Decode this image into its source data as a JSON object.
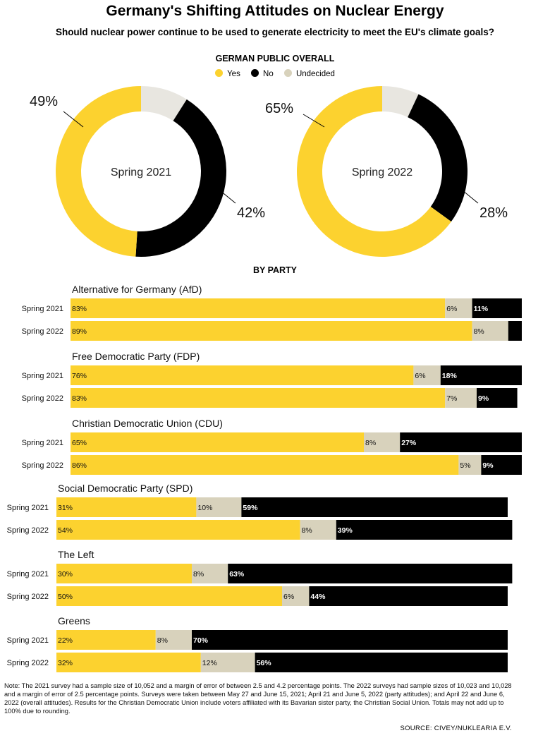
{
  "title": "Germany's Shifting Attitudes on Nuclear Energy",
  "subtitle": "Should nuclear power continue to be used to generate electricity to meet the EU's climate goals?",
  "overall_label": "GERMAN PUBLIC OVERALL",
  "party_label": "BY PARTY",
  "legend": [
    {
      "label": "Yes",
      "color": "#fcd22f"
    },
    {
      "label": "No",
      "color": "#000000"
    },
    {
      "label": "Undecided",
      "color": "#d8d2bc"
    }
  ],
  "colors": {
    "yes": "#fcd22f",
    "no": "#000000",
    "undecided_bar": "#d8d2bc",
    "undecided_donut": "#e8e6e0"
  },
  "chart_data": [
    {
      "type": "pie",
      "title": "GERMAN PUBLIC OVERALL",
      "donuts": [
        {
          "label": "Spring 2021",
          "yes": 49,
          "no": 42,
          "undecided": 9,
          "yes_label": "49%",
          "no_label": "42%"
        },
        {
          "label": "Spring 2022",
          "yes": 65,
          "no": 28,
          "undecided": 7,
          "yes_label": "65%",
          "no_label": "28%"
        }
      ]
    },
    {
      "type": "bar",
      "title": "BY PARTY",
      "series_names": [
        "Yes",
        "Undecided",
        "No"
      ],
      "parties": [
        {
          "name": "Alternative for Germany (AfD)",
          "rows": [
            {
              "label": "Spring 2021",
              "yes": 83,
              "undecided": 6,
              "no": 11,
              "yes_text": "83%",
              "undecided_text": "6%",
              "no_text": "11%"
            },
            {
              "label": "Spring 2022",
              "yes": 89,
              "undecided": 8,
              "no": 3,
              "yes_text": "89%",
              "undecided_text": "8%",
              "no_text": ""
            }
          ]
        },
        {
          "name": "Free Democratic Party (FDP)",
          "rows": [
            {
              "label": "Spring 2021",
              "yes": 76,
              "undecided": 6,
              "no": 18,
              "yes_text": "76%",
              "undecided_text": "6%",
              "no_text": "18%"
            },
            {
              "label": "Spring 2022",
              "yes": 83,
              "undecided": 7,
              "no": 9,
              "yes_text": "83%",
              "undecided_text": "7%",
              "no_text": "9%"
            }
          ]
        },
        {
          "name": "Christian Democratic Union (CDU)",
          "rows": [
            {
              "label": "Spring 2021",
              "yes": 65,
              "undecided": 8,
              "no": 27,
              "yes_text": "65%",
              "undecided_text": "8%",
              "no_text": "27%"
            },
            {
              "label": "Spring 2022",
              "yes": 86,
              "undecided": 5,
              "no": 9,
              "yes_text": "86%",
              "undecided_text": "5%",
              "no_text": "9%"
            }
          ]
        },
        {
          "name": "Social Democratic Party (SPD)",
          "rows": [
            {
              "label": "Spring 2021",
              "yes": 31,
              "undecided": 10,
              "no": 59,
              "yes_text": "31%",
              "undecided_text": "10%",
              "no_text": "59%"
            },
            {
              "label": "Spring 2022",
              "yes": 54,
              "undecided": 8,
              "no": 39,
              "yes_text": "54%",
              "undecided_text": "8%",
              "no_text": "39%"
            }
          ]
        },
        {
          "name": "The Left",
          "rows": [
            {
              "label": "Spring 2021",
              "yes": 30,
              "undecided": 8,
              "no": 63,
              "yes_text": "30%",
              "undecided_text": "8%",
              "no_text": "63%"
            },
            {
              "label": "Spring 2022",
              "yes": 50,
              "undecided": 6,
              "no": 44,
              "yes_text": "50%",
              "undecided_text": "6%",
              "no_text": "44%"
            }
          ]
        },
        {
          "name": "Greens",
          "rows": [
            {
              "label": "Spring 2021",
              "yes": 22,
              "undecided": 8,
              "no": 70,
              "yes_text": "22%",
              "undecided_text": "8%",
              "no_text": "70%"
            },
            {
              "label": "Spring 2022",
              "yes": 32,
              "undecided": 12,
              "no": 56,
              "yes_text": "32%",
              "undecided_text": "12%",
              "no_text": "56%"
            }
          ]
        }
      ]
    }
  ],
  "note": "Note: The 2021 survey had a sample size of 10,052 and a margin of error of between 2.5 and 4.2 percentage points. The 2022 surveys had sample sizes of 10,023 and 10,028 and a margin of error of 2.5 percentage points. Surveys were taken between May 27 and June 15, 2021; April 21 and June 5, 2022 (party attitudes); and April 22 and June 6, 2022 (overall attitudes). Results for the Christian Democratic Union include voters affiliated with its Bavarian sister party, the Christian Social Union. Totals may not add up to 100% due to rounding.",
  "source": "SOURCE: CIVEY/NUKLEARIA E.V."
}
